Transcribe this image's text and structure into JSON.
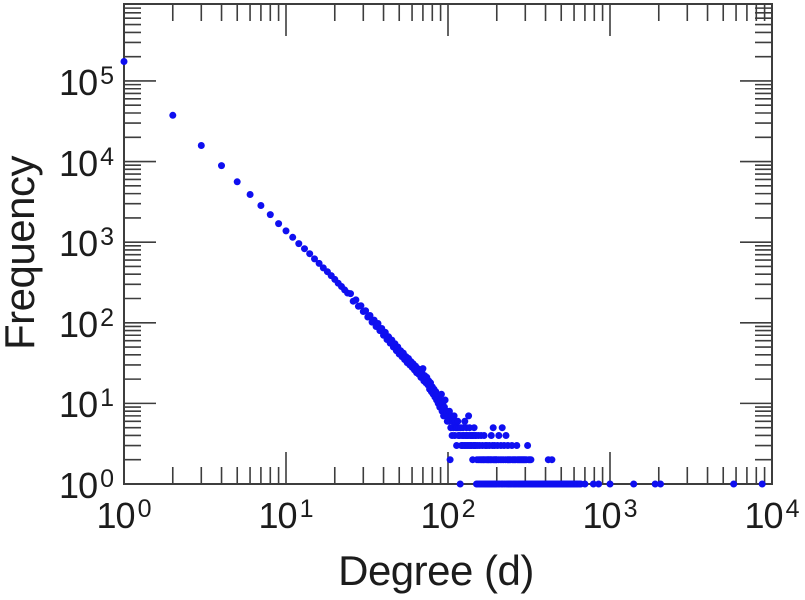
{
  "figure": {
    "background": "#ffffff"
  },
  "chart_data": {
    "type": "scatter",
    "title": "",
    "xlabel": "Degree (d)",
    "ylabel": "Frequency",
    "x_scale": "log",
    "y_scale": "log",
    "xlim": [
      1,
      10000
    ],
    "ylim": [
      1,
      900000
    ],
    "grid": false,
    "legend": null,
    "marker": {
      "shape": "circle",
      "color": "#0f0ff0",
      "radius_px": 3.5
    },
    "axis_color": "#3d3d3d",
    "text_color": "#1c1c1c",
    "tick_label_base": "10",
    "x_tick_exponents": [
      0,
      1,
      2,
      3,
      4
    ],
    "y_tick_exponents": [
      0,
      1,
      2,
      3,
      4,
      5
    ],
    "x_tick_labels": [
      "10^0",
      "10^1",
      "10^2",
      "10^3",
      "10^4"
    ],
    "y_tick_labels": [
      "10^0",
      "10^1",
      "10^2",
      "10^3",
      "10^4",
      "10^5"
    ],
    "points": [
      [
        1,
        174000
      ],
      [
        2,
        37500
      ],
      [
        3,
        15800
      ],
      [
        4,
        8900
      ],
      [
        5,
        5600
      ],
      [
        6,
        3900
      ],
      [
        7,
        2850
      ],
      [
        8,
        2200
      ],
      [
        9,
        1700
      ],
      [
        10,
        1380
      ],
      [
        11,
        1150
      ],
      [
        12,
        960
      ],
      [
        13,
        830
      ],
      [
        14,
        720
      ],
      [
        15,
        620
      ],
      [
        16,
        545
      ],
      [
        17,
        480
      ],
      [
        18,
        430
      ],
      [
        19,
        385
      ],
      [
        20,
        345
      ],
      [
        21,
        310
      ],
      [
        22,
        282
      ],
      [
        23,
        256
      ],
      [
        24,
        234
      ],
      [
        25,
        230
      ],
      [
        26,
        185
      ],
      [
        27,
        192
      ],
      [
        28,
        160
      ],
      [
        29,
        163
      ],
      [
        30,
        138
      ],
      [
        31,
        141
      ],
      [
        32,
        118
      ],
      [
        33,
        123
      ],
      [
        34,
        102
      ],
      [
        35,
        108
      ],
      [
        36,
        90
      ],
      [
        37,
        98
      ],
      [
        38,
        80
      ],
      [
        39,
        85
      ],
      [
        40,
        70
      ],
      [
        41,
        76
      ],
      [
        42,
        62
      ],
      [
        43,
        67
      ],
      [
        44,
        56
      ],
      [
        45,
        61
      ],
      [
        46,
        50
      ],
      [
        47,
        55
      ],
      [
        48,
        45
      ],
      [
        49,
        50
      ],
      [
        50,
        41
      ],
      [
        51,
        45
      ],
      [
        52,
        38
      ],
      [
        53,
        42
      ],
      [
        54,
        35
      ],
      [
        55,
        38
      ],
      [
        56,
        32
      ],
      [
        57,
        36
      ],
      [
        58,
        30
      ],
      [
        59,
        33
      ],
      [
        60,
        28
      ],
      [
        61,
        31
      ],
      [
        62,
        26
      ],
      [
        63,
        29
      ],
      [
        64,
        24
      ],
      [
        65,
        27
      ],
      [
        66,
        23
      ],
      [
        67,
        25
      ],
      [
        68,
        21
      ],
      [
        69,
        24
      ],
      [
        70,
        27
      ],
      [
        71,
        19
      ],
      [
        72,
        22
      ],
      [
        73,
        18
      ],
      [
        74,
        21
      ],
      [
        75,
        17
      ],
      [
        76,
        19
      ],
      [
        77,
        15
      ],
      [
        78,
        18
      ],
      [
        79,
        14
      ],
      [
        80,
        16
      ],
      [
        81,
        13
      ],
      [
        82,
        15
      ],
      [
        83,
        12
      ],
      [
        84,
        14
      ],
      [
        85,
        11
      ],
      [
        86,
        13
      ],
      [
        87,
        10
      ],
      [
        88,
        12
      ],
      [
        89,
        9
      ],
      [
        90,
        11
      ],
      [
        91,
        13
      ],
      [
        92,
        8
      ],
      [
        93,
        10
      ],
      [
        94,
        7
      ],
      [
        95,
        9
      ],
      [
        96,
        11
      ],
      [
        97,
        7
      ],
      [
        98,
        8
      ],
      [
        99,
        6
      ],
      [
        100,
        7
      ],
      [
        101,
        6
      ],
      [
        102,
        8
      ],
      [
        103,
        2
      ],
      [
        104,
        5
      ],
      [
        105,
        7
      ],
      [
        106,
        4
      ],
      [
        107,
        6
      ],
      [
        108,
        5
      ],
      [
        109,
        7
      ],
      [
        110,
        4
      ],
      [
        111,
        6
      ],
      [
        112,
        5
      ],
      [
        113,
        3
      ],
      [
        114,
        5
      ],
      [
        115,
        6
      ],
      [
        116,
        4
      ],
      [
        117,
        5
      ],
      [
        118,
        4
      ],
      [
        119,
        1
      ],
      [
        120,
        5
      ],
      [
        121,
        3
      ],
      [
        122,
        4
      ],
      [
        123,
        3
      ],
      [
        124,
        5
      ],
      [
        125,
        4
      ],
      [
        126,
        3
      ],
      [
        127,
        6
      ],
      [
        128,
        4
      ],
      [
        129,
        3
      ],
      [
        130,
        5
      ],
      [
        131,
        4
      ],
      [
        132,
        3
      ],
      [
        133,
        4
      ],
      [
        134,
        7
      ],
      [
        135,
        3
      ],
      [
        136,
        5
      ],
      [
        137,
        4
      ],
      [
        138,
        3
      ],
      [
        139,
        4
      ],
      [
        140,
        3
      ],
      [
        141,
        4
      ],
      [
        142,
        2
      ],
      [
        143,
        4
      ],
      [
        144,
        3
      ],
      [
        145,
        5
      ],
      [
        146,
        3
      ],
      [
        147,
        4
      ],
      [
        148,
        3
      ],
      [
        149,
        4
      ],
      [
        150,
        1
      ],
      [
        151,
        2
      ],
      [
        152,
        3
      ],
      [
        153,
        1
      ],
      [
        154,
        4
      ],
      [
        155,
        2
      ],
      [
        156,
        1
      ],
      [
        157,
        3
      ],
      [
        158,
        2
      ],
      [
        159,
        1
      ],
      [
        160,
        4
      ],
      [
        161,
        2
      ],
      [
        162,
        1
      ],
      [
        163,
        3
      ],
      [
        164,
        2
      ],
      [
        165,
        1
      ],
      [
        166,
        2
      ],
      [
        167,
        4
      ],
      [
        168,
        1
      ],
      [
        169,
        2
      ],
      [
        170,
        3
      ],
      [
        171,
        1
      ],
      [
        172,
        2
      ],
      [
        173,
        1
      ],
      [
        174,
        3
      ],
      [
        175,
        2
      ],
      [
        176,
        1
      ],
      [
        177,
        2
      ],
      [
        178,
        1
      ],
      [
        179,
        2
      ],
      [
        180,
        3
      ],
      [
        181,
        1
      ],
      [
        182,
        2
      ],
      [
        183,
        1
      ],
      [
        184,
        2
      ],
      [
        185,
        4
      ],
      [
        186,
        1
      ],
      [
        187,
        2
      ],
      [
        188,
        3
      ],
      [
        189,
        1
      ],
      [
        190,
        5
      ],
      [
        191,
        2
      ],
      [
        192,
        1
      ],
      [
        193,
        2
      ],
      [
        194,
        3
      ],
      [
        195,
        1
      ],
      [
        196,
        2
      ],
      [
        197,
        1
      ],
      [
        198,
        2
      ],
      [
        199,
        1
      ],
      [
        200,
        2
      ],
      [
        202,
        3
      ],
      [
        204,
        1
      ],
      [
        205,
        2
      ],
      [
        206,
        4
      ],
      [
        208,
        1
      ],
      [
        210,
        2
      ],
      [
        212,
        3
      ],
      [
        214,
        1
      ],
      [
        215,
        2
      ],
      [
        216,
        5
      ],
      [
        218,
        1
      ],
      [
        220,
        2
      ],
      [
        222,
        3
      ],
      [
        224,
        1
      ],
      [
        226,
        2
      ],
      [
        228,
        4
      ],
      [
        230,
        1
      ],
      [
        232,
        2
      ],
      [
        234,
        3
      ],
      [
        235,
        1
      ],
      [
        236,
        2
      ],
      [
        238,
        1
      ],
      [
        240,
        2
      ],
      [
        242,
        1
      ],
      [
        244,
        2
      ],
      [
        246,
        1
      ],
      [
        248,
        3
      ],
      [
        250,
        2
      ],
      [
        252,
        1
      ],
      [
        254,
        2
      ],
      [
        256,
        1
      ],
      [
        258,
        2
      ],
      [
        260,
        1
      ],
      [
        262,
        2
      ],
      [
        264,
        1
      ],
      [
        266,
        3
      ],
      [
        268,
        2
      ],
      [
        270,
        1
      ],
      [
        272,
        2
      ],
      [
        274,
        1
      ],
      [
        276,
        2
      ],
      [
        278,
        1
      ],
      [
        280,
        2
      ],
      [
        282,
        1
      ],
      [
        284,
        2
      ],
      [
        286,
        1
      ],
      [
        288,
        2
      ],
      [
        290,
        1
      ],
      [
        292,
        2
      ],
      [
        294,
        1
      ],
      [
        296,
        2
      ],
      [
        298,
        1
      ],
      [
        300,
        2
      ],
      [
        302,
        1
      ],
      [
        305,
        2
      ],
      [
        308,
        1
      ],
      [
        310,
        3
      ],
      [
        312,
        1
      ],
      [
        315,
        2
      ],
      [
        318,
        1
      ],
      [
        320,
        2
      ],
      [
        322,
        1
      ],
      [
        325,
        2
      ],
      [
        328,
        1
      ],
      [
        330,
        1
      ],
      [
        332,
        1
      ],
      [
        334,
        1
      ],
      [
        336,
        1
      ],
      [
        338,
        1
      ],
      [
        340,
        1
      ],
      [
        343,
        1
      ],
      [
        346,
        1
      ],
      [
        349,
        1
      ],
      [
        352,
        1
      ],
      [
        355,
        1
      ],
      [
        358,
        1
      ],
      [
        361,
        1
      ],
      [
        364,
        1
      ],
      [
        367,
        1
      ],
      [
        370,
        1
      ],
      [
        373,
        1
      ],
      [
        376,
        1
      ],
      [
        379,
        1
      ],
      [
        382,
        1
      ],
      [
        385,
        1
      ],
      [
        388,
        1
      ],
      [
        391,
        1
      ],
      [
        394,
        1
      ],
      [
        397,
        1
      ],
      [
        400,
        1
      ],
      [
        404,
        1
      ],
      [
        408,
        1
      ],
      [
        412,
        1
      ],
      [
        416,
        2
      ],
      [
        420,
        1
      ],
      [
        424,
        1
      ],
      [
        428,
        1
      ],
      [
        432,
        1
      ],
      [
        436,
        1
      ],
      [
        438,
        2
      ],
      [
        440,
        1
      ],
      [
        444,
        1
      ],
      [
        448,
        1
      ],
      [
        452,
        1
      ],
      [
        456,
        1
      ],
      [
        460,
        1
      ],
      [
        465,
        1
      ],
      [
        470,
        1
      ],
      [
        475,
        1
      ],
      [
        480,
        1
      ],
      [
        485,
        1
      ],
      [
        490,
        1
      ],
      [
        495,
        1
      ],
      [
        500,
        1
      ],
      [
        506,
        1
      ],
      [
        512,
        1
      ],
      [
        518,
        1
      ],
      [
        524,
        1
      ],
      [
        530,
        1
      ],
      [
        536,
        1
      ],
      [
        542,
        1
      ],
      [
        548,
        1
      ],
      [
        555,
        1
      ],
      [
        562,
        1
      ],
      [
        570,
        1
      ],
      [
        578,
        1
      ],
      [
        586,
        1
      ],
      [
        595,
        1
      ],
      [
        605,
        1
      ],
      [
        615,
        1
      ],
      [
        625,
        1
      ],
      [
        635,
        1
      ],
      [
        648,
        1
      ],
      [
        660,
        1
      ],
      [
        700,
        1
      ],
      [
        790,
        1
      ],
      [
        850,
        1
      ],
      [
        1000,
        1
      ],
      [
        1400,
        1
      ],
      [
        1900,
        1
      ],
      [
        2050,
        1
      ],
      [
        5800,
        1
      ],
      [
        8700,
        1
      ]
    ]
  }
}
